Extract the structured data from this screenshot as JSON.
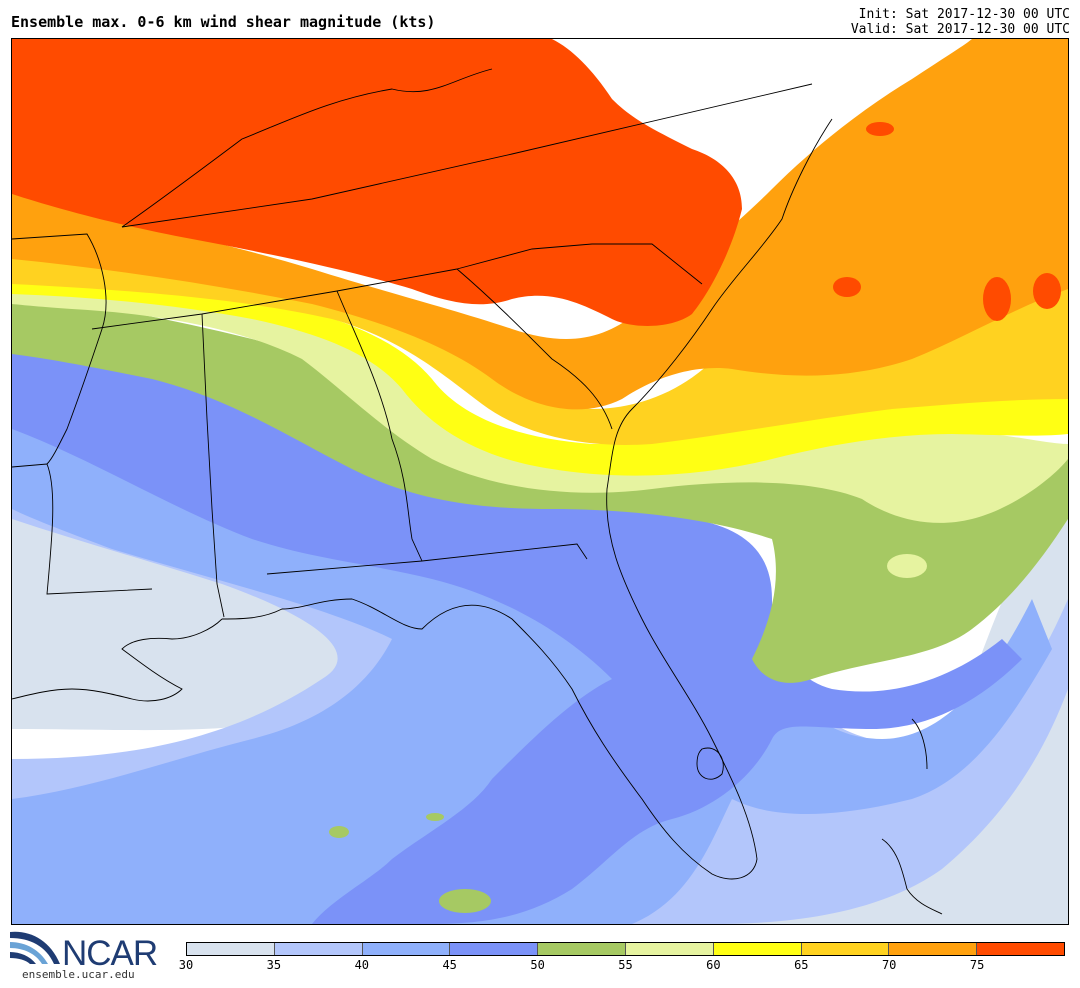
{
  "header": {
    "title": "Ensemble max. 0-6 km wind shear magnitude (kts)",
    "init": "Init: Sat 2017-12-30 00 UTC",
    "valid": "Valid: Sat 2017-12-30 00 UTC"
  },
  "logo": {
    "word": "NCAR",
    "url": "ensemble.ucar.edu"
  },
  "colorbar": {
    "ticks": [
      "30",
      "35",
      "40",
      "45",
      "50",
      "55",
      "60",
      "65",
      "70",
      "75"
    ],
    "colors": [
      "#d8e2ee",
      "#b3c6fb",
      "#8fb0fb",
      "#7b92f8",
      "#a6c963",
      "#e6f3a0",
      "#ffff14",
      "#ffd220",
      "#ffa10e",
      "#ff4b00"
    ]
  }
}
